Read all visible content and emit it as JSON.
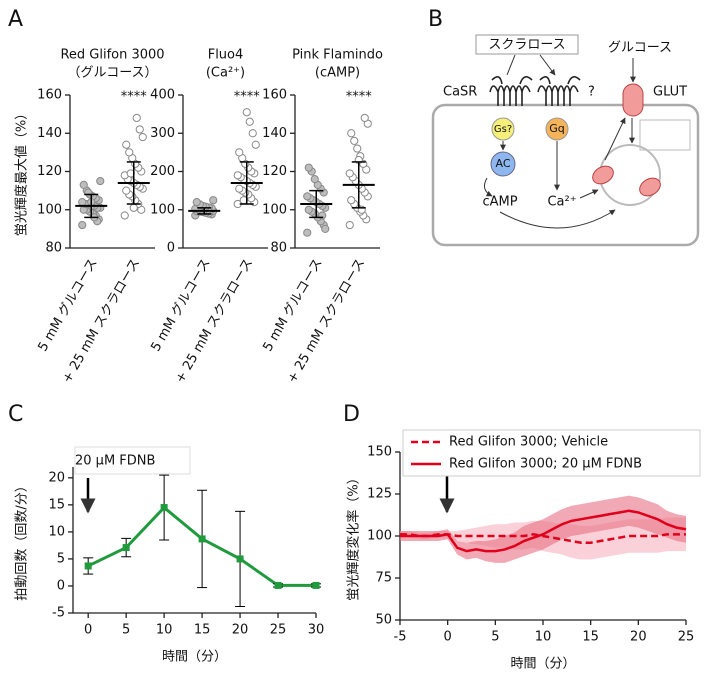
{
  "chart_data": [
    {
      "type": "dotplot",
      "panel": "A",
      "title": "Red Glifon 3000",
      "subtitle": "（グルコース）",
      "ylabel": "蛍光輝度最大値（%）",
      "categories": [
        "5 mM グルコース",
        "+ 25 mM スクラロース"
      ],
      "colors": [
        "#bdbdbd",
        "#ffffff"
      ],
      "values": [
        102,
        114
      ],
      "errors": [
        6,
        11
      ],
      "annotation": "****",
      "points": [
        [
          92,
          95,
          97,
          98,
          99,
          100,
          100,
          101,
          101,
          102,
          102,
          103,
          103,
          104,
          105,
          106,
          107,
          108,
          110,
          113,
          115,
          94,
          96,
          104,
          109
        ],
        [
          97,
          100,
          103,
          105,
          107,
          108,
          110,
          111,
          112,
          113,
          114,
          115,
          116,
          118,
          120,
          122,
          124,
          127,
          130,
          134,
          138,
          142,
          148,
          101,
          119
        ]
      ],
      "ylim": [
        80,
        160
      ],
      "yticks": [
        80,
        100,
        120,
        140,
        160
      ]
    },
    {
      "type": "dotplot",
      "title": "Fluo4",
      "subtitle": "(Ca²⁺)",
      "categories": [
        "5 mM グルコース",
        "+ 25 mM スクラロース"
      ],
      "colors": [
        "#bdbdbd",
        "#ffffff"
      ],
      "values": [
        97,
        170
      ],
      "errors": [
        8,
        55
      ],
      "annotation": "****",
      "points": [
        [
          85,
          88,
          90,
          92,
          94,
          95,
          96,
          97,
          98,
          99,
          100,
          100,
          101,
          102,
          104,
          106,
          108,
          110,
          114,
          120,
          125
        ],
        [
          115,
          120,
          130,
          140,
          145,
          150,
          155,
          160,
          165,
          170,
          175,
          180,
          185,
          190,
          195,
          200,
          210,
          220,
          235,
          250,
          270,
          300,
          330,
          355,
          125
        ]
      ],
      "ylim": [
        0,
        400
      ],
      "yticks": [
        0,
        100,
        200,
        300,
        400
      ]
    },
    {
      "type": "dotplot",
      "title": "Pink Flamindo",
      "subtitle": "(cAMP)",
      "categories": [
        "5 mM グルコース",
        "+ 25 mM スクラロース"
      ],
      "colors": [
        "#bdbdbd",
        "#ffffff"
      ],
      "values": [
        103,
        113
      ],
      "errors": [
        7,
        12
      ],
      "annotation": "****",
      "points": [
        [
          88,
          92,
          94,
          96,
          98,
          99,
          100,
          101,
          102,
          103,
          104,
          105,
          106,
          107,
          109,
          111,
          113,
          116,
          120,
          122,
          90,
          97
        ],
        [
          92,
          95,
          97,
          99,
          101,
          103,
          105,
          107,
          109,
          111,
          113,
          115,
          117,
          119,
          121,
          124,
          128,
          132,
          136,
          140,
          145,
          148,
          100,
          126
        ]
      ],
      "ylim": [
        80,
        160
      ],
      "yticks": [
        80,
        100,
        120,
        140,
        160
      ]
    },
    {
      "type": "line",
      "panel": "C",
      "xlabel": "時間（分）",
      "ylabel": "拍動回数（回数/分）",
      "annotation": "20 µM FDNB",
      "color": "#1f9a3c",
      "x": [
        0,
        5,
        10,
        15,
        20,
        25,
        30
      ],
      "values": [
        3.7,
        7.1,
        14.5,
        8.7,
        5,
        0.1,
        0.1
      ],
      "errors": [
        1.5,
        1.7,
        6,
        9,
        8.8,
        0.3,
        0.3
      ],
      "xlim": [
        -2,
        30
      ],
      "xticks": [
        0,
        5,
        10,
        15,
        20,
        25,
        30
      ],
      "ylim": [
        -5,
        22
      ],
      "yticks": [
        -5,
        0,
        5,
        10,
        15,
        20
      ]
    },
    {
      "type": "line",
      "panel": "D",
      "xlabel": "時間（分）",
      "ylabel": "蛍光輝度変化率（%）",
      "legend": "upper left",
      "x": [
        -5,
        -4,
        -3,
        -2,
        -1,
        0,
        1,
        2,
        3,
        4,
        5,
        6,
        7,
        8,
        9,
        10,
        11,
        12,
        13,
        14,
        15,
        16,
        17,
        18,
        19,
        20,
        21,
        22,
        23,
        24,
        25
      ],
      "series": [
        {
          "name": "Red Glifon 3000; Vehicle",
          "color": "#e0001b",
          "band_color": "#f7b3be",
          "line_style": "dashed",
          "values": [
            101,
            101,
            100,
            100,
            101,
            101,
            100,
            100,
            100,
            100,
            100,
            100,
            100,
            100,
            101,
            100,
            99,
            98,
            97,
            96,
            96,
            97,
            98,
            99,
            100,
            100,
            100,
            100,
            101,
            101,
            101
          ],
          "errors": [
            2,
            2,
            2,
            2,
            2,
            2,
            3,
            4,
            5,
            6,
            7,
            7,
            8,
            8,
            8,
            9,
            9,
            9,
            10,
            10,
            10,
            10,
            10,
            10,
            10,
            10,
            10,
            10,
            10,
            10,
            10
          ]
        },
        {
          "name": "Red Glifon 3000; 20 µM FDNB",
          "color": "#e0001b",
          "band_color": "#ea6f86",
          "line_style": "solid",
          "values": [
            100,
            100,
            100,
            100,
            100,
            101,
            93,
            91,
            92,
            91,
            91,
            92,
            94,
            97,
            99,
            101,
            104,
            107,
            109,
            110,
            111,
            112,
            113,
            114,
            115,
            114,
            112,
            110,
            107,
            105,
            104
          ],
          "errors": [
            3,
            3,
            3,
            3,
            3,
            3,
            4,
            5,
            5,
            6,
            7,
            8,
            8,
            9,
            9,
            9,
            9,
            9,
            9,
            9,
            9,
            9,
            9,
            9,
            9,
            9,
            9,
            9,
            8,
            8,
            8
          ]
        }
      ],
      "xlim": [
        -5,
        25
      ],
      "xticks": [
        -5,
        0,
        5,
        10,
        15,
        20,
        25
      ],
      "ylim": [
        50,
        150
      ],
      "yticks": [
        50,
        75,
        100,
        125,
        150
      ]
    }
  ],
  "diagram": {
    "panel": "B",
    "ligand": "スクラロース",
    "receptor": "CaSR",
    "unknown": "?",
    "sugar": "グルコース",
    "transporter": "GLUT",
    "gs": "Gs?",
    "gq": "Gq",
    "enzyme": "AC",
    "second_messenger": "cAMP",
    "ion": "Ca²⁺"
  }
}
